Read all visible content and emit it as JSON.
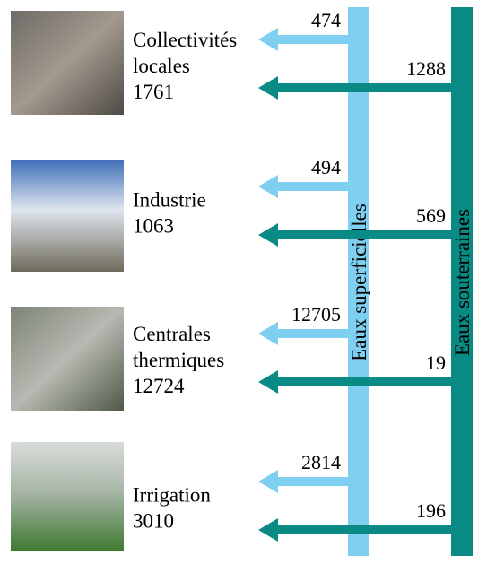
{
  "sources": {
    "surface": "Eaux superficielles",
    "ground": "Eaux souterraines"
  },
  "sectors": [
    {
      "label_lines": [
        "Collectivités",
        "locales"
      ],
      "total": 1761,
      "surface": 474,
      "ground": 1288
    },
    {
      "label_lines": [
        "Industrie"
      ],
      "total": 1063,
      "surface": 494,
      "ground": 569
    },
    {
      "label_lines": [
        "Centrales",
        "thermiques"
      ],
      "total": 12724,
      "surface": 12705,
      "ground": 19
    },
    {
      "label_lines": [
        "Irrigation"
      ],
      "total": 3010,
      "surface": 2814,
      "ground": 196
    }
  ]
}
